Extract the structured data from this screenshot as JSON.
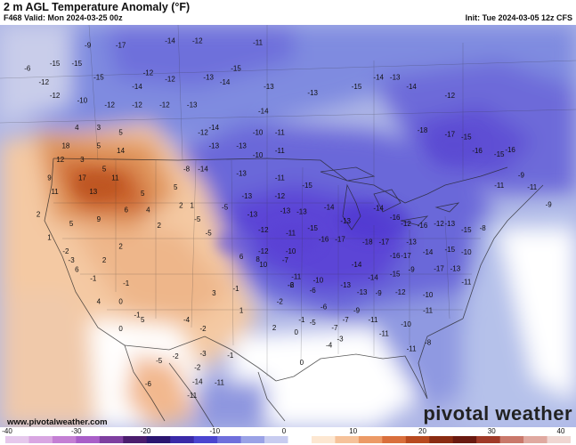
{
  "header": {
    "title": "2 m AGL Temperature Anomaly (°F)",
    "valid": "F468 Valid: Mon 2024-03-25 00z",
    "init": "Init: Tue 2024-03-05 12z CFS"
  },
  "footer": {
    "watermark": "www.pivotalweather.com",
    "brand": "pivotal weather"
  },
  "colorbar": {
    "ticks": [
      "-40",
      "-30",
      "-20",
      "-10",
      "0",
      "10",
      "20",
      "30",
      "40"
    ],
    "range": [
      -40,
      40
    ]
  },
  "colors": {
    "very_cold": "#5b3fd8",
    "cold": "#6f6fdc",
    "cool": "#9fa9e4",
    "near_normal": "#ffffff",
    "warm": "#f4c9a3",
    "hot": "#de8a52",
    "very_hot": "#c9602a"
  },
  "anomaly_labels": [
    {
      "text": "-9",
      "x": -119,
      "y": 49.5
    },
    {
      "text": "-17",
      "x": -113,
      "y": 49.5
    },
    {
      "text": "-14",
      "x": -104,
      "y": 50
    },
    {
      "text": "-12",
      "x": -99,
      "y": 50
    },
    {
      "text": "-11",
      "x": -88,
      "y": 49.8
    },
    {
      "text": "-6",
      "x": -130,
      "y": 47
    },
    {
      "text": "-15",
      "x": -125,
      "y": 47.5
    },
    {
      "text": "-15",
      "x": -121,
      "y": 47.5
    },
    {
      "text": "-12",
      "x": -127,
      "y": 45.5
    },
    {
      "text": "-15",
      "x": -117,
      "y": 46
    },
    {
      "text": "-12",
      "x": -108,
      "y": 46.5
    },
    {
      "text": "-14",
      "x": -110,
      "y": 45
    },
    {
      "text": "-12",
      "x": -104,
      "y": 45.8
    },
    {
      "text": "-13",
      "x": -97,
      "y": 46
    },
    {
      "text": "-15",
      "x": -92,
      "y": 47
    },
    {
      "text": "-14",
      "x": -94,
      "y": 45.5
    },
    {
      "text": "-13",
      "x": -86,
      "y": 45
    },
    {
      "text": "-13",
      "x": -78,
      "y": 44.3
    },
    {
      "text": "-14",
      "x": -66,
      "y": 46
    },
    {
      "text": "-13",
      "x": -63,
      "y": 46
    },
    {
      "text": "-15",
      "x": -70,
      "y": 45
    },
    {
      "text": "-14",
      "x": -60,
      "y": 45
    },
    {
      "text": "-12",
      "x": -53,
      "y": 44
    },
    {
      "text": "-12",
      "x": -125,
      "y": 44
    },
    {
      "text": "-10",
      "x": -120,
      "y": 43.5
    },
    {
      "text": "-12",
      "x": -115,
      "y": 43
    },
    {
      "text": "-12",
      "x": -110,
      "y": 43
    },
    {
      "text": "-12",
      "x": -105,
      "y": 43
    },
    {
      "text": "-13",
      "x": -100,
      "y": 43
    },
    {
      "text": "-14",
      "x": -87,
      "y": 42.3
    },
    {
      "text": "4",
      "x": -121,
      "y": 40.5
    },
    {
      "text": "3",
      "x": -117,
      "y": 40.5
    },
    {
      "text": "5",
      "x": -113,
      "y": 40
    },
    {
      "text": "18",
      "x": -123,
      "y": 38.5
    },
    {
      "text": "5",
      "x": -117,
      "y": 38.5
    },
    {
      "text": "14",
      "x": -113,
      "y": 38
    },
    {
      "text": "12",
      "x": -124,
      "y": 37
    },
    {
      "text": "3",
      "x": -120,
      "y": 37
    },
    {
      "text": "5",
      "x": -116,
      "y": 36
    },
    {
      "text": "9",
      "x": -126,
      "y": 35
    },
    {
      "text": "17",
      "x": -120,
      "y": 35
    },
    {
      "text": "11",
      "x": -114,
      "y": 35
    },
    {
      "text": "11",
      "x": -125,
      "y": 33.5
    },
    {
      "text": "13",
      "x": -118,
      "y": 33.5
    },
    {
      "text": "2",
      "x": -128,
      "y": 31
    },
    {
      "text": "5",
      "x": -122,
      "y": 30
    },
    {
      "text": "9",
      "x": -117,
      "y": 30.5
    },
    {
      "text": "1",
      "x": -126,
      "y": 28.5
    },
    {
      "text": "6",
      "x": -112,
      "y": 31.5
    },
    {
      "text": "5",
      "x": -109,
      "y": 33.3
    },
    {
      "text": "2",
      "x": -106,
      "y": 29.8
    },
    {
      "text": "-2",
      "x": -123,
      "y": 27
    },
    {
      "text": "-3",
      "x": -122,
      "y": 26
    },
    {
      "text": "6",
      "x": -121,
      "y": 25
    },
    {
      "text": "2",
      "x": -116,
      "y": 26
    },
    {
      "text": "2",
      "x": -113,
      "y": 27.5
    },
    {
      "text": "-1",
      "x": -118,
      "y": 24
    },
    {
      "text": "-1",
      "x": -112,
      "y": 23.5
    },
    {
      "text": "4",
      "x": -117,
      "y": 21.5
    },
    {
      "text": "0",
      "x": -113,
      "y": 21.5
    },
    {
      "text": "-1",
      "x": -110,
      "y": 20
    },
    {
      "text": "0",
      "x": -113,
      "y": 18.5
    },
    {
      "text": "5",
      "x": -109,
      "y": 19.5
    },
    {
      "text": "-12",
      "x": -98,
      "y": 40
    },
    {
      "text": "-14",
      "x": -96,
      "y": 40.5
    },
    {
      "text": "-10",
      "x": -88,
      "y": 40
    },
    {
      "text": "-11",
      "x": -84,
      "y": 40
    },
    {
      "text": "-13",
      "x": -96,
      "y": 38.5
    },
    {
      "text": "-13",
      "x": -91,
      "y": 38.5
    },
    {
      "text": "-11",
      "x": -84,
      "y": 38
    },
    {
      "text": "-10",
      "x": -88,
      "y": 37.5
    },
    {
      "text": "-8",
      "x": -101,
      "y": 36
    },
    {
      "text": "-14",
      "x": -98,
      "y": 36
    },
    {
      "text": "-13",
      "x": -91,
      "y": 35.5
    },
    {
      "text": "-11",
      "x": -84,
      "y": 35
    },
    {
      "text": "5",
      "x": -103,
      "y": 34
    },
    {
      "text": "2",
      "x": -102,
      "y": 32
    },
    {
      "text": "1",
      "x": -100,
      "y": 32
    },
    {
      "text": "4",
      "x": -108,
      "y": 31.5
    },
    {
      "text": "-13",
      "x": -90,
      "y": 33
    },
    {
      "text": "-12",
      "x": -84,
      "y": 33
    },
    {
      "text": "-5",
      "x": -99,
      "y": 30.5
    },
    {
      "text": "-5",
      "x": -97,
      "y": 29
    },
    {
      "text": "-5",
      "x": -94,
      "y": 31.8
    },
    {
      "text": "-13",
      "x": -89,
      "y": 31
    },
    {
      "text": "-12",
      "x": -87,
      "y": 29.3
    },
    {
      "text": "-13",
      "x": -83,
      "y": 31.4
    },
    {
      "text": "-10",
      "x": -82,
      "y": 27
    },
    {
      "text": "-12",
      "x": -87,
      "y": 27
    },
    {
      "text": "-11",
      "x": -82,
      "y": 29
    },
    {
      "text": "-15",
      "x": -79,
      "y": 34.2
    },
    {
      "text": "-13",
      "x": -80,
      "y": 31.3
    },
    {
      "text": "-15",
      "x": -78,
      "y": 29.5
    },
    {
      "text": "-14",
      "x": -75,
      "y": 31.8
    },
    {
      "text": "-16",
      "x": -76,
      "y": 28.3
    },
    {
      "text": "-17",
      "x": -73,
      "y": 28.3
    },
    {
      "text": "-13",
      "x": -72,
      "y": 30.3
    },
    {
      "text": "-18",
      "x": -68,
      "y": 28
    },
    {
      "text": "-17",
      "x": -65,
      "y": 28
    },
    {
      "text": "-16",
      "x": -63,
      "y": 30.7
    },
    {
      "text": "-12",
      "x": -61,
      "y": 30
    },
    {
      "text": "-16",
      "x": -58,
      "y": 29.8
    },
    {
      "text": "-12",
      "x": -55,
      "y": 30
    },
    {
      "text": "-13",
      "x": -53,
      "y": 30
    },
    {
      "text": "-15",
      "x": -50,
      "y": 29.3
    },
    {
      "text": "-8",
      "x": -47,
      "y": 29.5
    },
    {
      "text": "-16",
      "x": -48,
      "y": 38
    },
    {
      "text": "-18",
      "x": -58,
      "y": 40.2
    },
    {
      "text": "-17",
      "x": -53,
      "y": 39.8
    },
    {
      "text": "-15",
      "x": -50,
      "y": 39.5
    },
    {
      "text": "-15",
      "x": -44,
      "y": 37.6
    },
    {
      "text": "-16",
      "x": -42,
      "y": 38.1
    },
    {
      "text": "-9",
      "x": -40,
      "y": 35.3
    },
    {
      "text": "-11",
      "x": -38,
      "y": 34
    },
    {
      "text": "-11",
      "x": -44,
      "y": 34.2
    },
    {
      "text": "-9",
      "x": -35,
      "y": 32.1
    },
    {
      "text": "-14",
      "x": -66,
      "y": 31.7
    },
    {
      "text": "-16",
      "x": -63,
      "y": 26.5
    },
    {
      "text": "-13",
      "x": -60,
      "y": 28
    },
    {
      "text": "-17",
      "x": -61,
      "y": 26.5
    },
    {
      "text": "-14",
      "x": -57,
      "y": 26.9
    },
    {
      "text": "-15",
      "x": -53,
      "y": 27.2
    },
    {
      "text": "-10",
      "x": -50,
      "y": 26.9
    },
    {
      "text": "-17",
      "x": -55,
      "y": 25.1
    },
    {
      "text": "-13",
      "x": -52,
      "y": 25.1
    },
    {
      "text": "-11",
      "x": -50,
      "y": 23.6
    },
    {
      "text": "-9",
      "x": -60,
      "y": 25
    },
    {
      "text": "-14",
      "x": -67,
      "y": 24.1
    },
    {
      "text": "-15",
      "x": -63,
      "y": 24.5
    },
    {
      "text": "-12",
      "x": -62,
      "y": 22.5
    },
    {
      "text": "-10",
      "x": -57,
      "y": 22.2
    },
    {
      "text": "-9",
      "x": -66,
      "y": 22.4
    },
    {
      "text": "-13",
      "x": -69,
      "y": 22.5
    },
    {
      "text": "-13",
      "x": -72,
      "y": 23.3
    },
    {
      "text": "-14",
      "x": -70,
      "y": 25.5
    },
    {
      "text": "-9",
      "x": -70,
      "y": 20.5
    },
    {
      "text": "-7",
      "x": -72,
      "y": 19.5
    },
    {
      "text": "-11",
      "x": -67,
      "y": 19.5
    },
    {
      "text": "-11",
      "x": -65,
      "y": 18
    },
    {
      "text": "-11",
      "x": -60,
      "y": 16.3
    },
    {
      "text": "-11",
      "x": -57,
      "y": 20.5
    },
    {
      "text": "-10",
      "x": -61,
      "y": 19
    },
    {
      "text": "-8",
      "x": -57,
      "y": 17
    },
    {
      "text": "-6",
      "x": -76,
      "y": 20.9
    },
    {
      "text": "-7",
      "x": -74,
      "y": 18.6
    },
    {
      "text": "-5",
      "x": -78,
      "y": 19.2
    },
    {
      "text": "-4",
      "x": -75,
      "y": 16.7
    },
    {
      "text": "-1",
      "x": -80,
      "y": 19.5
    },
    {
      "text": "-2",
      "x": -84,
      "y": 21.5
    },
    {
      "text": "-2",
      "x": -82,
      "y": 23.3
    },
    {
      "text": "-6",
      "x": -78,
      "y": 22.7
    },
    {
      "text": "-7",
      "x": -83,
      "y": 26
    },
    {
      "text": "-6",
      "x": -82,
      "y": 23.3
    },
    {
      "text": "-11",
      "x": -81,
      "y": 24.2
    },
    {
      "text": "-10",
      "x": -77,
      "y": 23.8
    },
    {
      "text": "6",
      "x": -91,
      "y": 26.4
    },
    {
      "text": "10",
      "x": -87,
      "y": 25.5
    },
    {
      "text": "8",
      "x": -88,
      "y": 26.1
    },
    {
      "text": "-1",
      "x": -92,
      "y": 22.9
    },
    {
      "text": "1",
      "x": -91,
      "y": 20.5
    },
    {
      "text": "3",
      "x": -96,
      "y": 22.4
    },
    {
      "text": "-4",
      "x": -101,
      "y": 19.5
    },
    {
      "text": "-2",
      "x": -98,
      "y": 18.5
    },
    {
      "text": "-2",
      "x": -103,
      "y": 15.5
    },
    {
      "text": "2",
      "x": -85,
      "y": 18.6
    },
    {
      "text": "0",
      "x": -81,
      "y": 18.1
    },
    {
      "text": "-3",
      "x": -73,
      "y": 17.4
    },
    {
      "text": "0",
      "x": -80,
      "y": 14.8
    },
    {
      "text": "-1",
      "x": -93,
      "y": 15.6
    },
    {
      "text": "-2",
      "x": -99,
      "y": 14.3
    },
    {
      "text": "-6",
      "x": -108,
      "y": 12.5
    },
    {
      "text": "-5",
      "x": -106,
      "y": 15
    },
    {
      "text": "-11",
      "x": -95,
      "y": 12.6
    },
    {
      "text": "-14",
      "x": -99,
      "y": 12.7
    },
    {
      "text": "-11",
      "x": -100,
      "y": 11.2
    },
    {
      "text": "-3",
      "x": -98,
      "y": 15.8
    }
  ]
}
